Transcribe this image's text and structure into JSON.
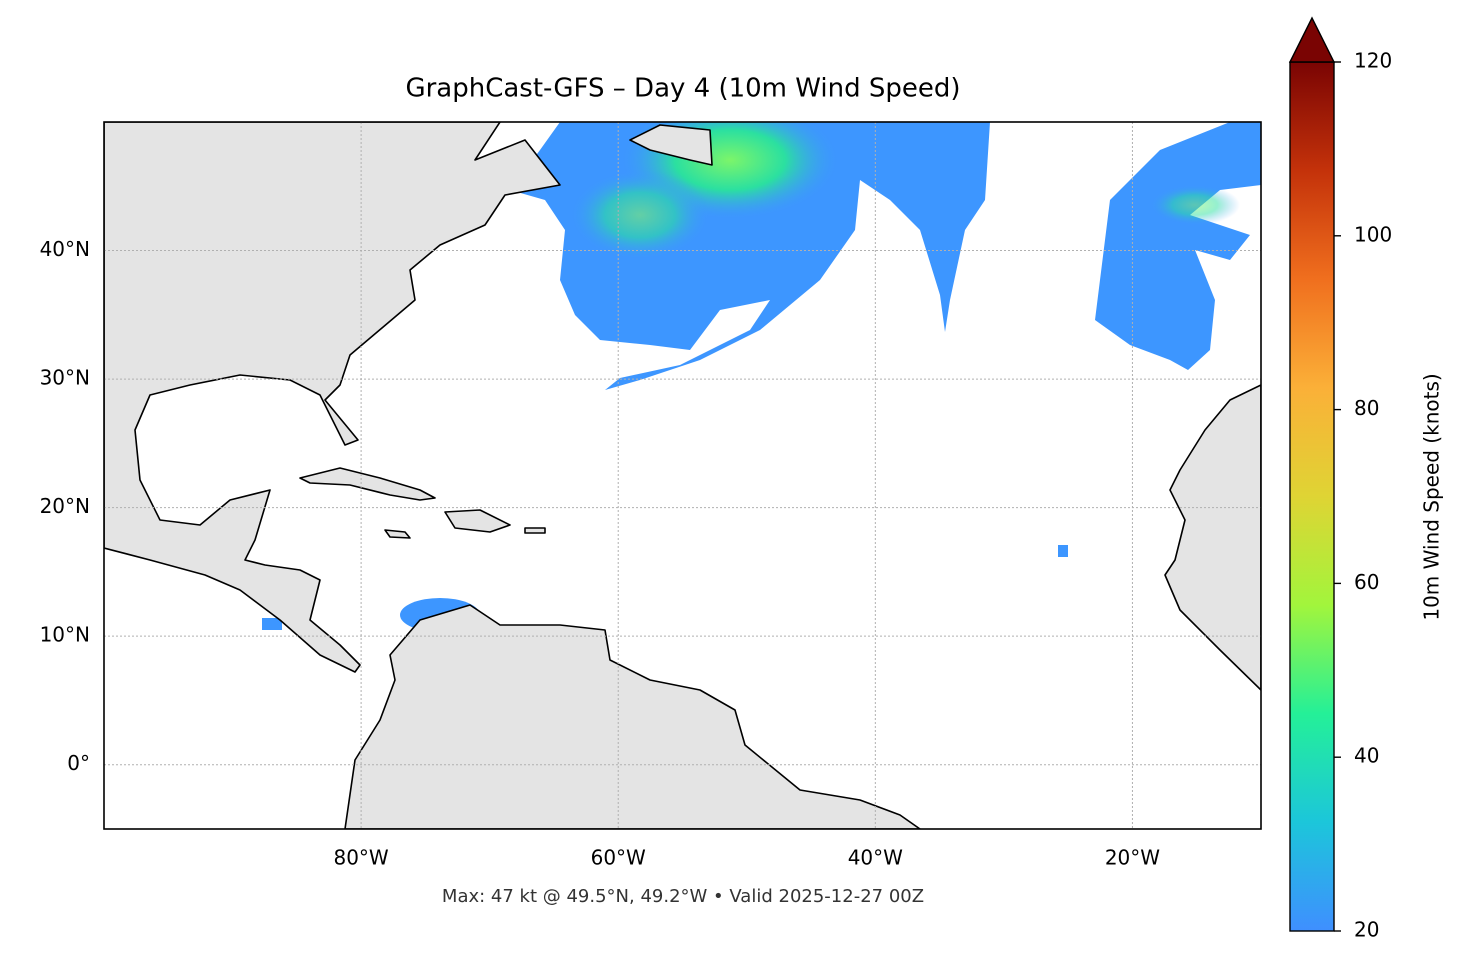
{
  "chart_data": {
    "type": "map",
    "title": "GraphCast-GFS – Day 4 (10m Wind Speed)",
    "footer": "Max: 47 kt @ 49.5°N, 49.2°W • Valid 2025-12-27 00Z",
    "xlim": [
      -100,
      -10
    ],
    "ylim": [
      -5,
      50
    ],
    "xticks": [
      {
        "value": -80,
        "label": "80°W"
      },
      {
        "value": -60,
        "label": "60°W"
      },
      {
        "value": -40,
        "label": "40°W"
      },
      {
        "value": -20,
        "label": "20°W"
      }
    ],
    "yticks": [
      {
        "value": 0,
        "label": "0°"
      },
      {
        "value": 10,
        "label": "10°N"
      },
      {
        "value": 20,
        "label": "20°N"
      },
      {
        "value": 30,
        "label": "30°N"
      },
      {
        "value": 40,
        "label": "40°N"
      }
    ],
    "grid": true,
    "colorbar": {
      "label": "10m Wind Speed (knots)",
      "lim": [
        20,
        120
      ],
      "ticks": [
        20,
        40,
        60,
        80,
        100,
        120
      ],
      "extend": "max",
      "colors": [
        "#3f8fff",
        "#1cc6da",
        "#24f098",
        "#a2f53c",
        "#dfd434",
        "#fbb038",
        "#f06f1e",
        "#c4320a",
        "#7a0403"
      ]
    }
  }
}
